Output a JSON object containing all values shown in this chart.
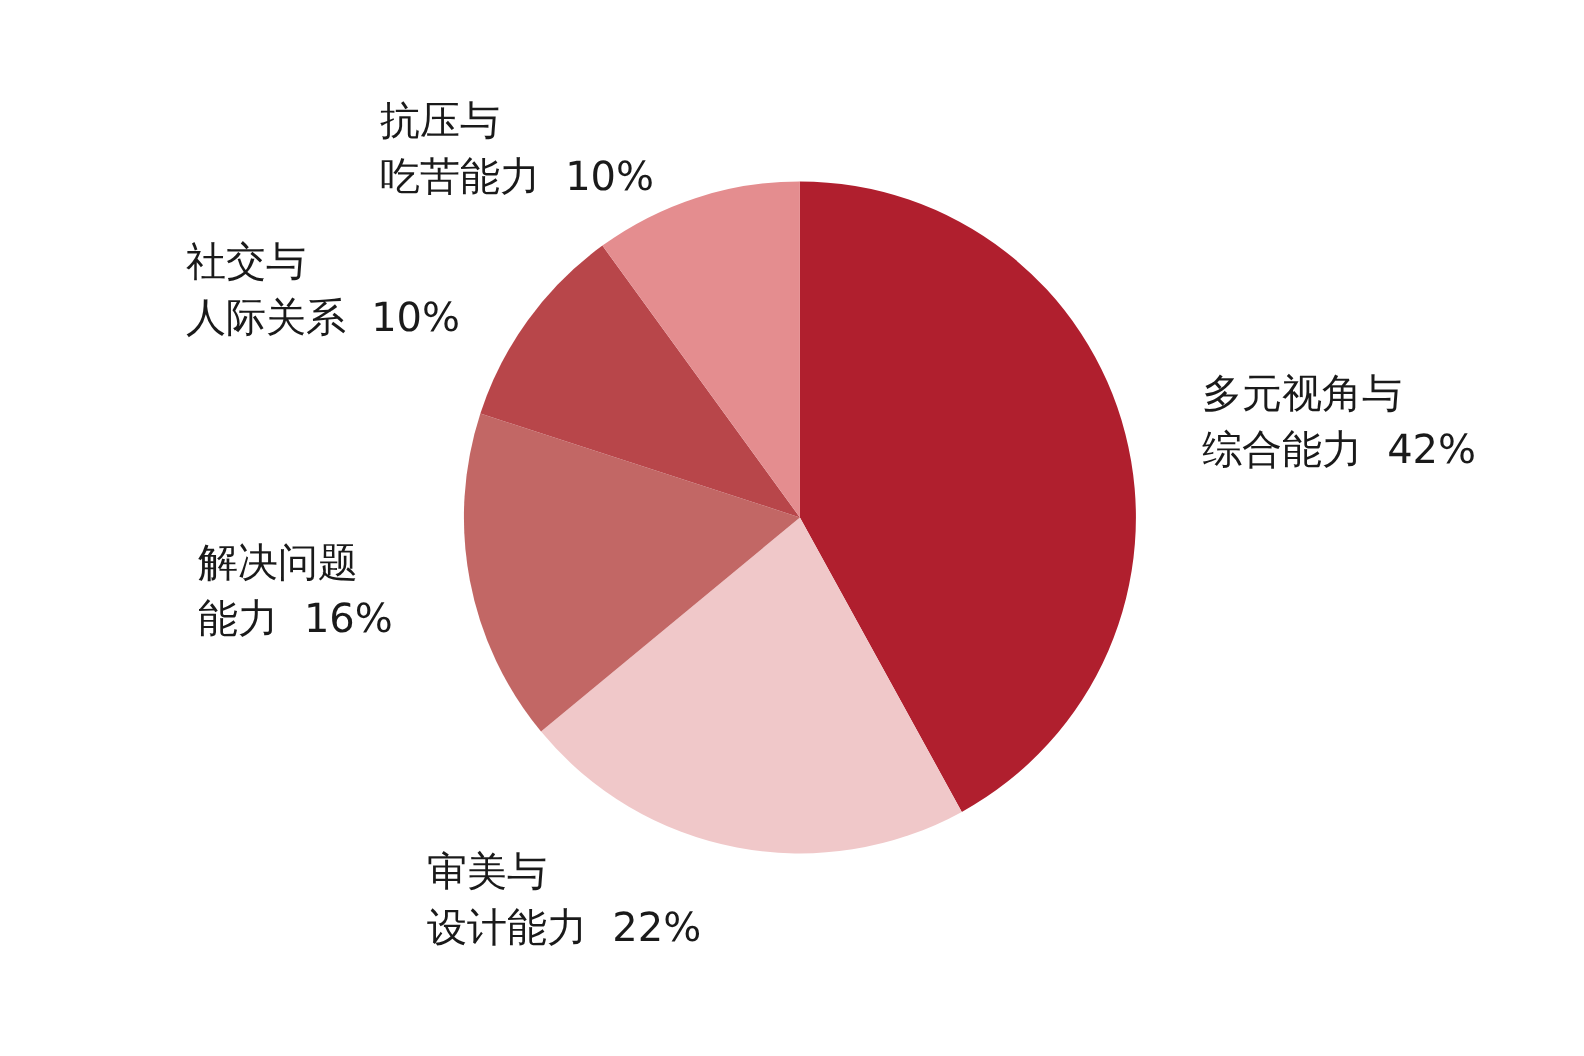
{
  "chart_data": {
    "type": "pie",
    "categories": [
      "多元视角与综合能力",
      "审美与设计能力",
      "解决问题能力",
      "社交与人际关系",
      "抗压与吃苦能力"
    ],
    "values": [
      42,
      22,
      16,
      10,
      10
    ],
    "value_labels": [
      "42%",
      "22%",
      "16%",
      "10%",
      "10%"
    ],
    "colors": [
      "#b01f2e",
      "#f0c8c9",
      "#c26765",
      "#b8464a",
      "#e48d8f"
    ],
    "legend": false
  }
}
